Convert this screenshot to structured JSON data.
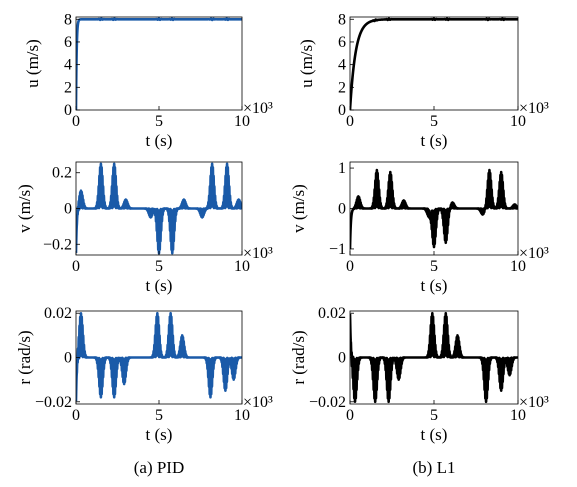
{
  "chart_data": [
    {
      "type": "line",
      "title": "",
      "xlabel": "t (s)",
      "ylabel": "u (m/s)",
      "x_multiplier": "×10³",
      "ylim": [
        0,
        8.2
      ],
      "xlim": [
        0,
        10
      ],
      "yticks": [
        "0",
        "2",
        "4",
        "6",
        "8"
      ],
      "xticks": [
        "0",
        "5",
        "10"
      ],
      "series": [
        {
          "color": "#1a5aa8",
          "profile": "step",
          "final": 8.0,
          "rise": 0.12,
          "wiggles": [
            1.5,
            2.3,
            5.0,
            5.8,
            8.2,
            9.1
          ]
        }
      ]
    },
    {
      "type": "line",
      "title": "",
      "xlabel": "t (s)",
      "ylabel": "u (m/s)",
      "x_multiplier": "×10³",
      "ylim": [
        0,
        8.2
      ],
      "xlim": [
        0,
        10
      ],
      "yticks": [
        "0",
        "2",
        "4",
        "6",
        "8"
      ],
      "xticks": [
        "0",
        "5",
        "10"
      ],
      "series": [
        {
          "color": "#000000",
          "profile": "step",
          "final": 8.0,
          "rise": 1.0,
          "wiggles": [
            1.5,
            2.3,
            5.0,
            5.8,
            8.2,
            9.1
          ]
        }
      ]
    },
    {
      "type": "line",
      "title": "",
      "xlabel": "t (s)",
      "ylabel": "v (m/s)",
      "x_multiplier": "×10³",
      "ylim": [
        -0.26,
        0.26
      ],
      "xlim": [
        0,
        10
      ],
      "yticks": [
        "−0.2",
        "0",
        "0.2"
      ],
      "xticks": [
        "0",
        "5",
        "10"
      ],
      "series": [
        {
          "color": "#1a5aa8",
          "profile": "bursts",
          "start_amp": -0.25,
          "bursts": [
            [
              0.3,
              0.1
            ],
            [
              1.5,
              0.25
            ],
            [
              2.3,
              0.25
            ],
            [
              3.0,
              0.05
            ],
            [
              4.5,
              -0.05
            ],
            [
              5.0,
              -0.25
            ],
            [
              5.8,
              -0.25
            ],
            [
              6.5,
              0.05
            ],
            [
              7.6,
              -0.05
            ],
            [
              8.2,
              0.25
            ],
            [
              9.1,
              0.25
            ],
            [
              9.8,
              0.05
            ]
          ]
        }
      ]
    },
    {
      "type": "line",
      "title": "",
      "xlabel": "t (s)",
      "ylabel": "v (m/s)",
      "x_multiplier": "×10³",
      "ylim": [
        -1.15,
        1.15
      ],
      "xlim": [
        0,
        10
      ],
      "yticks": [
        "−1",
        "0",
        "1"
      ],
      "xticks": [
        "0",
        "5",
        "10"
      ],
      "series": [
        {
          "color": "#000000",
          "profile": "bursts",
          "start_amp": -1.0,
          "bursts": [
            [
              0.5,
              0.3
            ],
            [
              1.6,
              0.95
            ],
            [
              2.4,
              0.9
            ],
            [
              3.2,
              0.2
            ],
            [
              4.7,
              -0.2
            ],
            [
              5.0,
              -0.95
            ],
            [
              5.7,
              -0.85
            ],
            [
              6.1,
              0.15
            ],
            [
              7.9,
              -0.15
            ],
            [
              8.3,
              0.95
            ],
            [
              9.0,
              0.9
            ],
            [
              9.8,
              0.1
            ]
          ]
        }
      ]
    },
    {
      "type": "line",
      "title": "",
      "xlabel": "t (s)",
      "ylabel": "r (rad/s)",
      "x_multiplier": "×10³",
      "ylim": [
        -0.021,
        0.021
      ],
      "xlim": [
        0,
        10
      ],
      "yticks": [
        "−0.02",
        "0",
        "0.02"
      ],
      "xticks": [
        "0",
        "5",
        "10"
      ],
      "series": [
        {
          "color": "#1a5aa8",
          "profile": "bursts",
          "start_amp": -0.02,
          "bursts": [
            [
              0.3,
              0.02
            ],
            [
              1.5,
              -0.018
            ],
            [
              2.3,
              -0.018
            ],
            [
              2.9,
              -0.012
            ],
            [
              4.9,
              0.02
            ],
            [
              5.7,
              0.02
            ],
            [
              6.4,
              0.01
            ],
            [
              8.1,
              -0.018
            ],
            [
              9.0,
              -0.015
            ],
            [
              9.5,
              -0.01
            ]
          ]
        }
      ]
    },
    {
      "type": "line",
      "title": "",
      "xlabel": "t (s)",
      "ylabel": "r (rad/s)",
      "x_multiplier": "×10³",
      "ylim": [
        -0.021,
        0.021
      ],
      "xlim": [
        0,
        10
      ],
      "yticks": [
        "−0.02",
        "0",
        "0.02"
      ],
      "xticks": [
        "0",
        "5",
        "10"
      ],
      "series": [
        {
          "color": "#000000",
          "profile": "bursts",
          "start_amp": 0.02,
          "bursts": [
            [
              0.3,
              -0.02
            ],
            [
              1.5,
              -0.02
            ],
            [
              2.3,
              -0.02
            ],
            [
              2.9,
              -0.01
            ],
            [
              4.9,
              0.02
            ],
            [
              5.7,
              0.02
            ],
            [
              6.4,
              0.01
            ],
            [
              8.1,
              -0.02
            ],
            [
              9.0,
              -0.015
            ],
            [
              9.5,
              -0.008
            ]
          ]
        }
      ]
    }
  ],
  "captions": {
    "left": "(a) PID",
    "right": "(b) L1"
  }
}
